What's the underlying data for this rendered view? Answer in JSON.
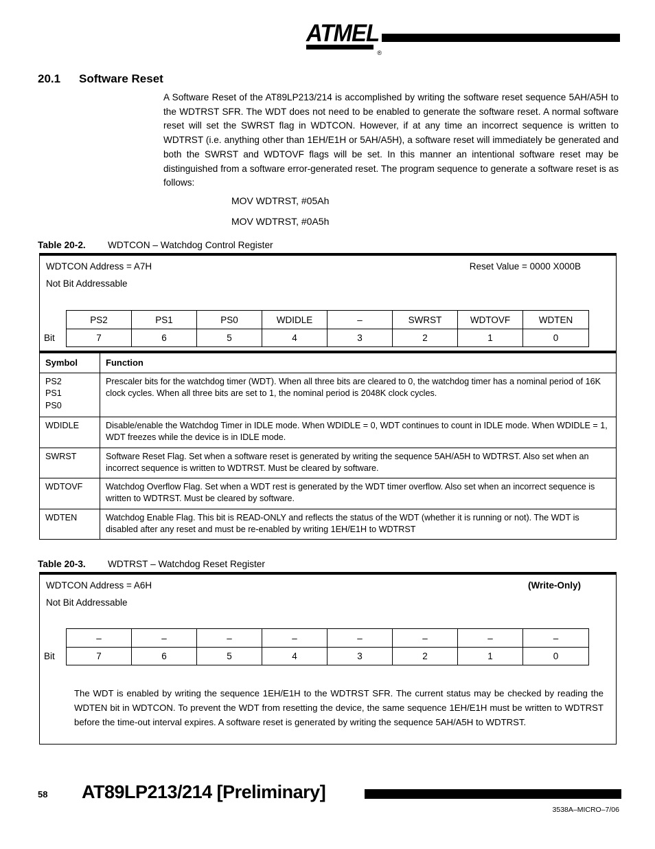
{
  "logo": {
    "text": "ATMEL",
    "registered": "®"
  },
  "section": {
    "number": "20.1",
    "title": "Software Reset",
    "body": "A Software Reset of the AT89LP213/214 is accomplished by writing the software reset sequence 5AH/A5H to the WDTRST SFR. The WDT does not need to be enabled to generate the software reset. A normal software reset will set the SWRST flag in WDTCON. However, if at any time an incorrect sequence is written to WDTRST (i.e. anything other than 1EH/E1H or 5AH/A5H), a software reset will immediately be generated and both the SWRST and WDTOVF flags will be set. In this manner an intentional software reset may be distinguished from a software error-generated reset. The program sequence to generate a software reset is as follows:",
    "code": [
      "MOV WDTRST, #05Ah",
      "MOV WDTRST, #0A5h"
    ]
  },
  "table2": {
    "label": "Table 20-2.",
    "title": "WDTCON – Watchdog Control Register",
    "address": "WDTCON Address = A7H",
    "reset_value": "Reset Value = 0000 X000B",
    "addressable": "Not Bit Addressable",
    "bit": "Bit",
    "names": [
      "PS2",
      "PS1",
      "PS0",
      "WDIDLE",
      "–",
      "SWRST",
      "WDTOVF",
      "WDTEN"
    ],
    "numbers": [
      "7",
      "6",
      "5",
      "4",
      "3",
      "2",
      "1",
      "0"
    ],
    "col_symbol": "Symbol",
    "col_function": "Function",
    "rows": [
      {
        "symbol": "PS2\nPS1\nPS0",
        "function": "Prescaler bits for the watchdog timer (WDT). When all three bits are cleared to 0, the watchdog timer has a nominal period of 16K clock cycles. When all three bits are set to 1, the nominal period is 2048K clock cycles."
      },
      {
        "symbol": "WDIDLE",
        "function": "Disable/enable the Watchdog Timer in IDLE mode. When WDIDLE = 0, WDT continues to count in IDLE mode. When WDIDLE = 1, WDT freezes while the device is in IDLE mode."
      },
      {
        "symbol": "SWRST",
        "function": "Software Reset Flag. Set when a software reset is generated by writing the sequence 5AH/A5H to WDTRST. Also set when an incorrect sequence is written to WDTRST. Must be cleared by software."
      },
      {
        "symbol": "WDTOVF",
        "function": "Watchdog Overflow Flag. Set when a WDT rest is generated by the WDT timer overflow. Also set when an incorrect sequence is written to WDTRST. Must be cleared by software."
      },
      {
        "symbol": "WDTEN",
        "function": "Watchdog Enable Flag. This bit is READ-ONLY and reflects the status of the WDT (whether it is running or not). The WDT is disabled after any reset and must be re-enabled by writing 1EH/E1H to WDTRST"
      }
    ]
  },
  "table3": {
    "label": "Table 20-3.",
    "title": "WDTRST – Watchdog Reset Register",
    "address": "WDTCON Address = A6H",
    "write_only": "(Write-Only)",
    "addressable": "Not Bit Addressable",
    "bit": "Bit",
    "names": [
      "–",
      "–",
      "–",
      "–",
      "–",
      "–",
      "–",
      "–"
    ],
    "numbers": [
      "7",
      "6",
      "5",
      "4",
      "3",
      "2",
      "1",
      "0"
    ],
    "note": "The WDT is enabled by writing the sequence 1EH/E1H to the WDTRST SFR. The current status may be checked by reading the WDTEN bit in WDTCON. To prevent the WDT from resetting the device, the same sequence 1EH/E1H must be written to WDTRST before the time-out interval expires. A software reset is generated by writing the sequence 5AH/A5H to WDTRST."
  },
  "footer": {
    "page_number": "58",
    "title": "AT89LP213/214 [Preliminary]",
    "doc_code": "3538A–MICRO–7/06"
  }
}
